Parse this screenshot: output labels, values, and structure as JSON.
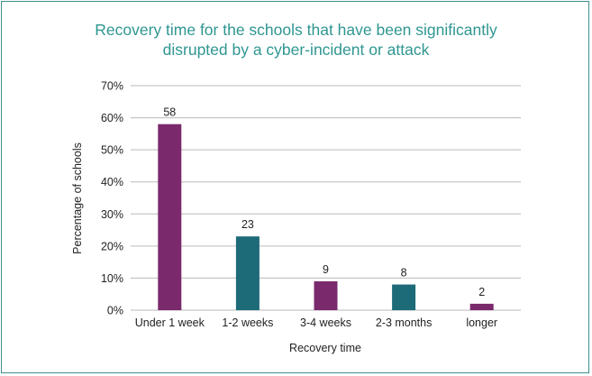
{
  "chart_data": {
    "type": "bar",
    "title_lines": [
      "Recovery time for the schools that have been significantly",
      "disrupted by a cyber-incident or attack"
    ],
    "xlabel": "Recovery time",
    "ylabel": "Percentage of schools",
    "categories": [
      "Under 1 week",
      "1-2 weeks",
      "3-4 weeks",
      "2-3 months",
      "longer"
    ],
    "values": [
      58,
      23,
      9,
      8,
      2
    ],
    "data_labels": [
      "58",
      "23",
      "9",
      "8",
      "2"
    ],
    "bar_colors": [
      "#7a2a6c",
      "#1d6a78",
      "#7a2a6c",
      "#1d6a78",
      "#7a2a6c"
    ],
    "ylim": [
      0,
      70
    ],
    "yticks": [
      0,
      10,
      20,
      30,
      40,
      50,
      60,
      70
    ],
    "ytick_labels": [
      "0%",
      "10%",
      "20%",
      "30%",
      "40%",
      "50%",
      "60%",
      "70%"
    ],
    "grid": true,
    "legend": "none",
    "title_color": "#2f9691",
    "frame_color": "#3f8f8c"
  }
}
